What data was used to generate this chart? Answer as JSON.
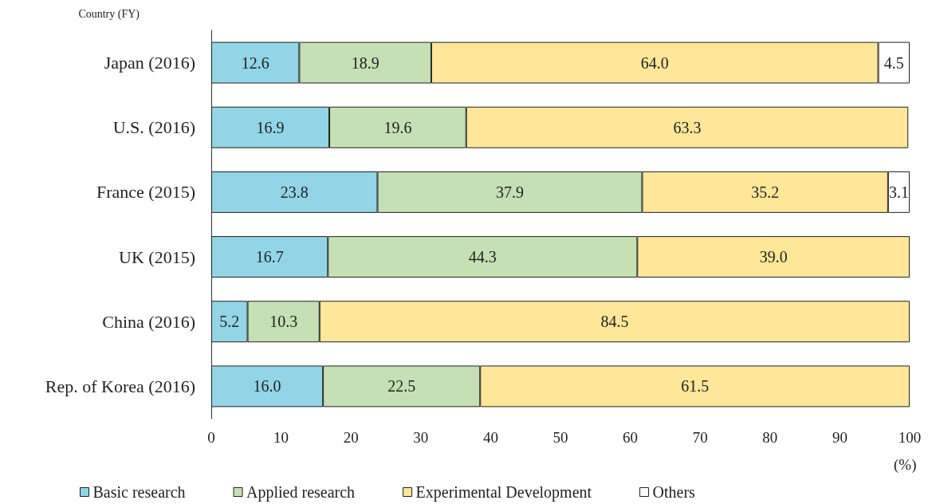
{
  "chart_data": {
    "type": "bar",
    "orientation": "horizontal",
    "stacked": true,
    "ylabel": "Country (FY)",
    "xlabel": "(%)",
    "categories": [
      "Japan (2016)",
      "U.S. (2016)",
      "France (2015)",
      "UK (2015)",
      "China (2016)",
      "Rep. of Korea (2016)"
    ],
    "series": [
      {
        "name": "Basic research",
        "color": "#92d5e6",
        "values": [
          12.6,
          16.9,
          23.8,
          16.7,
          5.2,
          16.0
        ],
        "value_labels": [
          "12.6",
          "16.9",
          "23.8",
          "16.7",
          "5.2",
          "16.0"
        ]
      },
      {
        "name": "Applied research",
        "color": "#c5e0b4",
        "values": [
          18.9,
          19.6,
          37.9,
          44.3,
          10.3,
          22.5
        ],
        "value_labels": [
          "18.9",
          "19.6",
          "37.9",
          "44.3",
          "10.3",
          "22.5"
        ]
      },
      {
        "name": "Experimental Development",
        "color": "#ffe699",
        "values": [
          64.0,
          63.3,
          35.2,
          39.0,
          84.5,
          61.5
        ],
        "value_labels": [
          "64.0",
          "63.3",
          "35.2",
          "39.0",
          "84.5",
          "61.5"
        ]
      },
      {
        "name": "Others",
        "color": "#ffffff",
        "values": [
          4.5,
          null,
          3.1,
          null,
          null,
          null
        ],
        "value_labels": [
          "4.5",
          null,
          "3.1",
          null,
          null,
          null
        ]
      }
    ],
    "xlim": [
      0,
      100
    ],
    "xticks": [
      0,
      10,
      20,
      30,
      40,
      50,
      60,
      70,
      80,
      90,
      100
    ],
    "grid": false,
    "legend": "bottom"
  }
}
